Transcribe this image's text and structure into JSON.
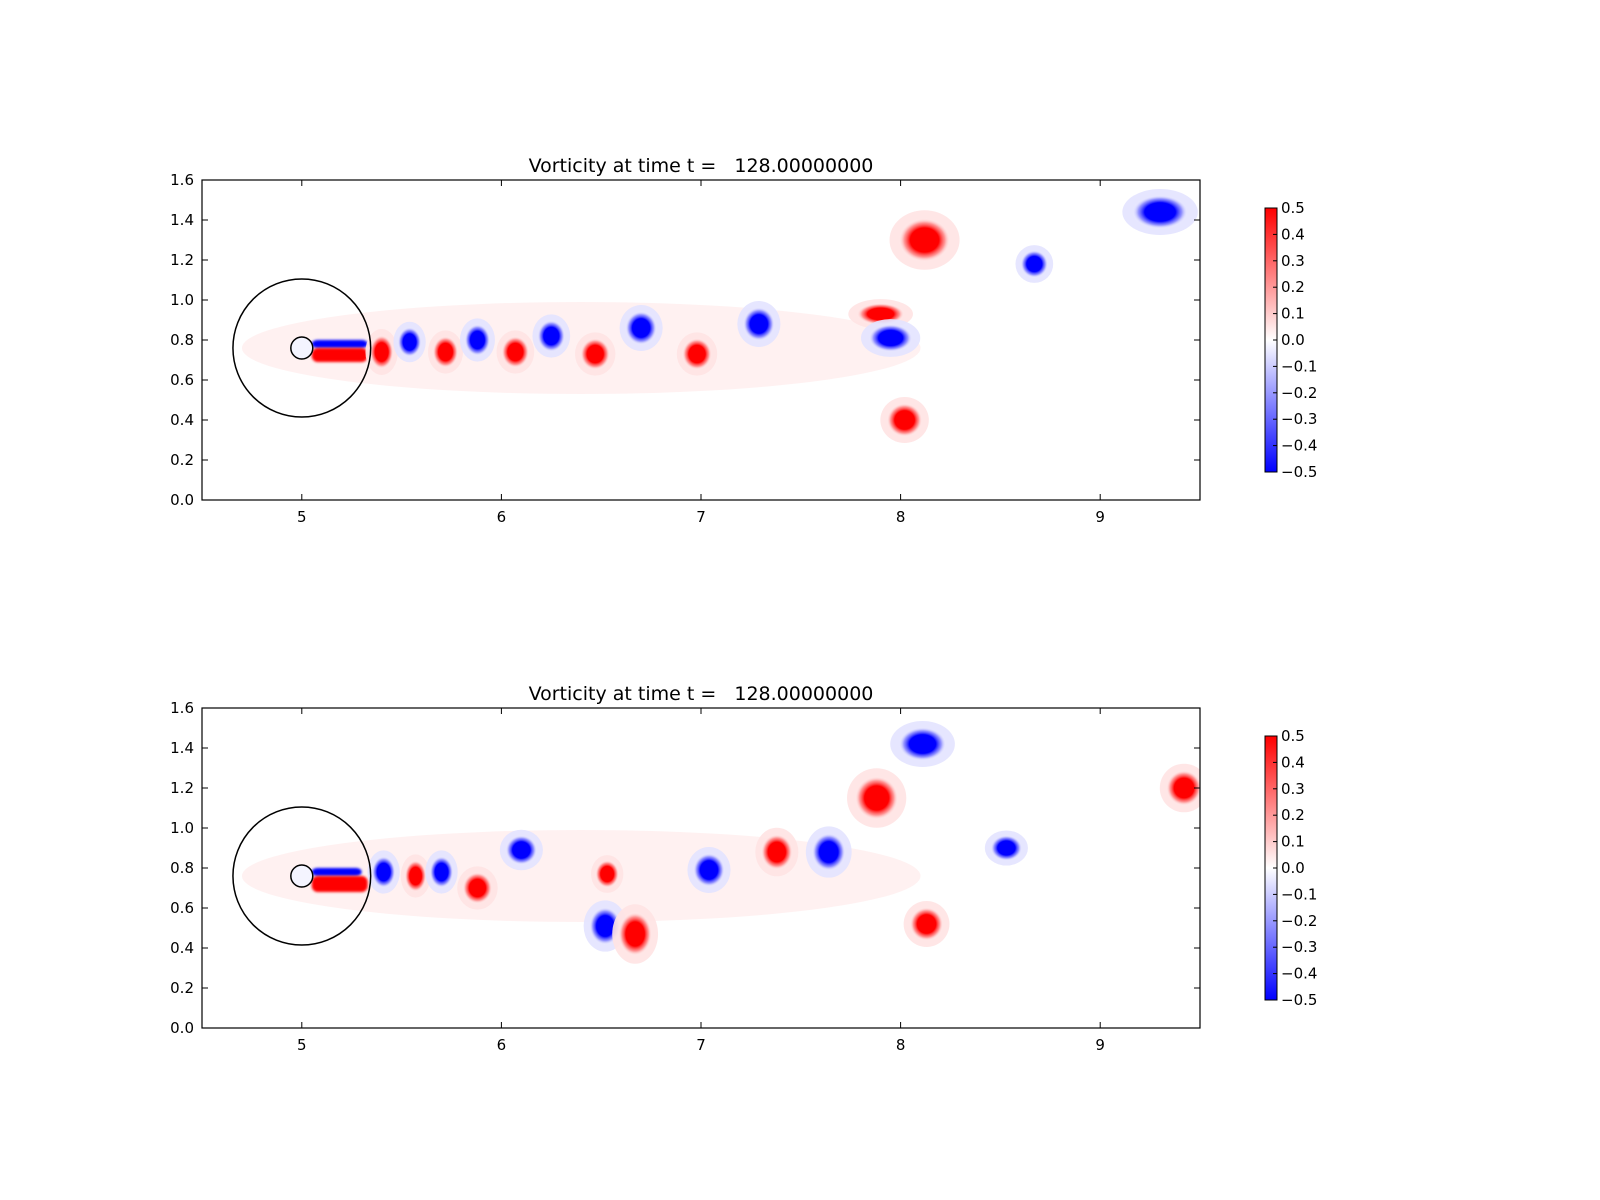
{
  "figure": {
    "background": "#ffffff"
  },
  "chart_data": [
    {
      "type": "heatmap",
      "title": "Vorticity at time t =   128.00000000",
      "xlabel": "",
      "ylabel": "",
      "xlim": [
        4.5,
        9.5
      ],
      "ylim": [
        0.0,
        1.6
      ],
      "xticks": [
        5,
        6,
        7,
        8,
        9
      ],
      "yticks": [
        "0.0",
        "0.2",
        "0.4",
        "0.6",
        "0.8",
        "1.0",
        "1.2",
        "1.4",
        "1.6"
      ],
      "grid": false,
      "colormap": "bwr",
      "colormap_colors": {
        "low": "#0000ff",
        "mid": "#ffffff",
        "high": "#ff0000"
      },
      "colorbar": {
        "range": [
          -0.5,
          0.5
        ],
        "ticks": [
          "0.5",
          "0.4",
          "0.3",
          "0.2",
          "0.1",
          "0.0",
          "−0.1",
          "−0.2",
          "−0.3",
          "−0.4",
          "−0.5"
        ]
      },
      "cylinder": {
        "center": [
          5.0,
          0.76
        ],
        "radius": 0.055
      },
      "domain_circle": {
        "center": [
          5.0,
          0.76
        ],
        "radius": 0.345
      },
      "shear_layers": [
        {
          "x": [
            5.05,
            5.33
          ],
          "y": [
            0.76,
            0.8
          ],
          "sign": -1
        },
        {
          "x": [
            5.05,
            5.33
          ],
          "y": [
            0.69,
            0.76
          ],
          "sign": 1
        }
      ],
      "vortices": [
        {
          "x": 5.4,
          "y": 0.74,
          "rx": 0.06,
          "ry": 0.085,
          "value": 0.5
        },
        {
          "x": 5.54,
          "y": 0.79,
          "rx": 0.06,
          "ry": 0.075,
          "value": -0.5
        },
        {
          "x": 5.72,
          "y": 0.74,
          "rx": 0.065,
          "ry": 0.08,
          "value": 0.5
        },
        {
          "x": 5.88,
          "y": 0.8,
          "rx": 0.065,
          "ry": 0.08,
          "value": -0.5
        },
        {
          "x": 6.07,
          "y": 0.74,
          "rx": 0.07,
          "ry": 0.08,
          "value": 0.5
        },
        {
          "x": 6.25,
          "y": 0.82,
          "rx": 0.07,
          "ry": 0.08,
          "value": -0.5
        },
        {
          "x": 6.47,
          "y": 0.73,
          "rx": 0.075,
          "ry": 0.08,
          "value": 0.5
        },
        {
          "x": 6.7,
          "y": 0.86,
          "rx": 0.08,
          "ry": 0.085,
          "value": -0.5
        },
        {
          "x": 6.98,
          "y": 0.73,
          "rx": 0.075,
          "ry": 0.08,
          "value": 0.5
        },
        {
          "x": 7.29,
          "y": 0.88,
          "rx": 0.08,
          "ry": 0.085,
          "value": -0.5
        },
        {
          "x": 7.9,
          "y": 0.93,
          "rx": 0.12,
          "ry": 0.055,
          "value": 0.5
        },
        {
          "x": 7.95,
          "y": 0.81,
          "rx": 0.11,
          "ry": 0.07,
          "value": -0.5
        },
        {
          "x": 8.12,
          "y": 1.3,
          "rx": 0.13,
          "ry": 0.11,
          "value": 0.5
        },
        {
          "x": 8.02,
          "y": 0.4,
          "rx": 0.09,
          "ry": 0.085,
          "value": 0.5
        },
        {
          "x": 8.67,
          "y": 1.18,
          "rx": 0.07,
          "ry": 0.07,
          "value": -0.5
        },
        {
          "x": 9.3,
          "y": 1.44,
          "rx": 0.14,
          "ry": 0.085,
          "value": -0.5
        }
      ]
    },
    {
      "type": "heatmap",
      "title": "Vorticity at time t =   128.00000000",
      "xlabel": "",
      "ylabel": "",
      "xlim": [
        4.5,
        9.5
      ],
      "ylim": [
        0.0,
        1.6
      ],
      "xticks": [
        5,
        6,
        7,
        8,
        9
      ],
      "yticks": [
        "0.0",
        "0.2",
        "0.4",
        "0.6",
        "0.8",
        "1.0",
        "1.2",
        "1.4",
        "1.6"
      ],
      "grid": false,
      "colormap": "bwr",
      "colormap_colors": {
        "low": "#0000ff",
        "mid": "#ffffff",
        "high": "#ff0000"
      },
      "colorbar": {
        "range": [
          -0.5,
          0.5
        ],
        "ticks": [
          "0.5",
          "0.4",
          "0.3",
          "0.2",
          "0.1",
          "0.0",
          "−0.1",
          "−0.2",
          "−0.3",
          "−0.4",
          "−0.5"
        ]
      },
      "cylinder": {
        "center": [
          5.0,
          0.76
        ],
        "radius": 0.055
      },
      "domain_circle": {
        "center": [
          5.0,
          0.76
        ],
        "radius": 0.345
      },
      "shear_layers": [
        {
          "x": [
            5.05,
            5.3
          ],
          "y": [
            0.76,
            0.8
          ],
          "sign": -1
        },
        {
          "x": [
            5.05,
            5.33
          ],
          "y": [
            0.68,
            0.76
          ],
          "sign": 1
        }
      ],
      "vortices": [
        {
          "x": 5.41,
          "y": 0.78,
          "rx": 0.06,
          "ry": 0.08,
          "value": -0.5
        },
        {
          "x": 5.57,
          "y": 0.76,
          "rx": 0.055,
          "ry": 0.08,
          "value": 0.5
        },
        {
          "x": 5.7,
          "y": 0.78,
          "rx": 0.06,
          "ry": 0.08,
          "value": -0.5
        },
        {
          "x": 5.88,
          "y": 0.7,
          "rx": 0.075,
          "ry": 0.08,
          "value": 0.5
        },
        {
          "x": 6.1,
          "y": 0.89,
          "rx": 0.08,
          "ry": 0.075,
          "value": -0.5
        },
        {
          "x": 6.53,
          "y": 0.77,
          "rx": 0.06,
          "ry": 0.07,
          "value": 0.5
        },
        {
          "x": 6.52,
          "y": 0.51,
          "rx": 0.08,
          "ry": 0.095,
          "value": -0.5
        },
        {
          "x": 6.67,
          "y": 0.47,
          "rx": 0.085,
          "ry": 0.11,
          "value": 0.5
        },
        {
          "x": 7.04,
          "y": 0.79,
          "rx": 0.08,
          "ry": 0.085,
          "value": -0.5
        },
        {
          "x": 7.38,
          "y": 0.88,
          "rx": 0.08,
          "ry": 0.09,
          "value": 0.5
        },
        {
          "x": 7.64,
          "y": 0.88,
          "rx": 0.085,
          "ry": 0.095,
          "value": -0.5
        },
        {
          "x": 7.88,
          "y": 1.15,
          "rx": 0.11,
          "ry": 0.11,
          "value": 0.5
        },
        {
          "x": 8.11,
          "y": 1.42,
          "rx": 0.12,
          "ry": 0.085,
          "value": -0.5
        },
        {
          "x": 8.13,
          "y": 0.52,
          "rx": 0.085,
          "ry": 0.085,
          "value": 0.5
        },
        {
          "x": 8.53,
          "y": 0.9,
          "rx": 0.08,
          "ry": 0.065,
          "value": -0.5
        },
        {
          "x": 9.42,
          "y": 1.2,
          "rx": 0.09,
          "ry": 0.09,
          "value": 0.5
        }
      ]
    }
  ]
}
